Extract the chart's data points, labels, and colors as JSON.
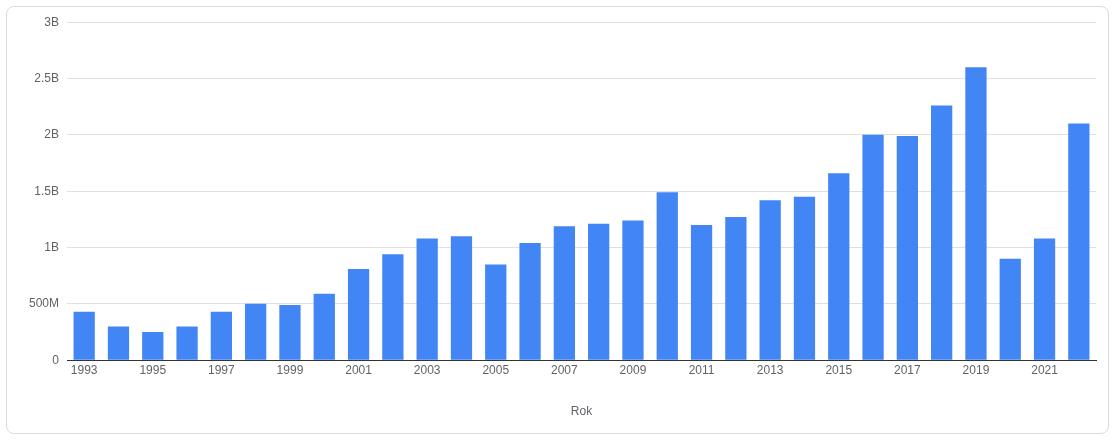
{
  "chart_data": {
    "type": "bar",
    "xlabel": "Rok",
    "categories": [
      "1993",
      null,
      "1995",
      null,
      "1997",
      null,
      "1999",
      null,
      "2001",
      null,
      "2003",
      null,
      "2005",
      null,
      "2007",
      null,
      "2009",
      null,
      "2011",
      null,
      "2013",
      null,
      "2015",
      null,
      "2017",
      null,
      "2019",
      null,
      "2021",
      null
    ],
    "values": [
      430000000,
      300000000,
      250000000,
      300000000,
      430000000,
      500000000,
      490000000,
      590000000,
      810000000,
      940000000,
      1080000000,
      1100000000,
      850000000,
      1040000000,
      1190000000,
      1210000000,
      1240000000,
      1490000000,
      1200000000,
      1270000000,
      1420000000,
      1450000000,
      1660000000,
      2000000000,
      1990000000,
      2260000000,
      2600000000,
      900000000,
      1080000000,
      2100000000
    ],
    "color": "#4285f4",
    "ylim": [
      0,
      3000000000
    ],
    "yticks": [
      0,
      {
        "value": 500000000,
        "label": "500M"
      },
      {
        "value": 1000000000,
        "label": "1B"
      },
      {
        "value": 1500000000,
        "label": "1.5B"
      },
      {
        "value": 2000000000,
        "label": "2B"
      },
      {
        "value": 2500000000,
        "label": "2.5B"
      },
      {
        "value": 3000000000,
        "label": "3B"
      }
    ],
    "grid": "y"
  }
}
